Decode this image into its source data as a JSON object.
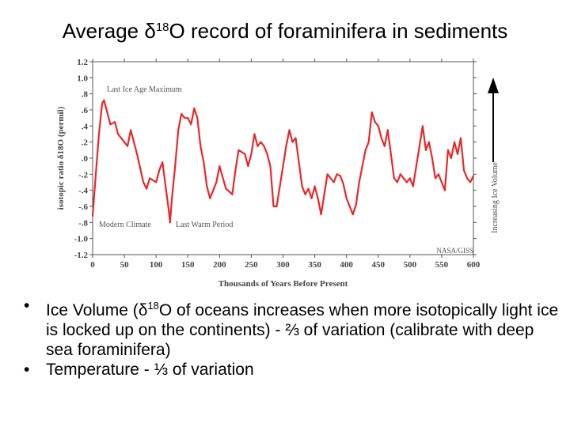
{
  "slide": {
    "title_prefix": "Average δ",
    "title_sup": "18",
    "title_suffix": "O record of foraminifera in sediments"
  },
  "bullets": [
    {
      "before": "Ice Volume (δ",
      "sup": "18",
      "after": "O of oceans increases when more isotopically light ice is locked up on the continents) - ⅔ of variation (calibrate with deep sea foraminifera)"
    },
    {
      "text": "Temperature - ⅓ of variation"
    }
  ],
  "chart_data": {
    "type": "line",
    "title": "",
    "xlabel": "Thousands of Years Before Present",
    "ylabel": "isotopic ratio δ18O (permil)",
    "xlim": [
      0,
      600
    ],
    "ylim": [
      -1.2,
      1.2
    ],
    "x_ticks": [
      0,
      50,
      100,
      150,
      200,
      250,
      300,
      350,
      400,
      450,
      500,
      550,
      600
    ],
    "y_ticks": [
      {
        "v": 1.2,
        "label": "1.2"
      },
      {
        "v": 1.0,
        "label": "1.0"
      },
      {
        "v": 0.8,
        "label": ".8"
      },
      {
        "v": 0.6,
        "label": ".6"
      },
      {
        "v": 0.4,
        "label": ".4"
      },
      {
        "v": 0.2,
        "label": ".2"
      },
      {
        "v": 0.0,
        "label": ".0"
      },
      {
        "v": -0.2,
        "label": "-.2"
      },
      {
        "v": -0.4,
        "label": "-.4"
      },
      {
        "v": -0.6,
        "label": "-.6"
      },
      {
        "v": -0.8,
        "label": "-.8"
      },
      {
        "v": -1.0,
        "label": "-1.0"
      },
      {
        "v": -1.2,
        "label": "-1.2"
      }
    ],
    "annotations": {
      "last_ice_age": "Last Ice Age Maximum",
      "modern_climate": "Modern Climate",
      "last_warm": "Last Warm Period",
      "source": "NASA/GISS",
      "arrow_label": "Increasing Ice Volume"
    },
    "series": [
      {
        "name": "δ18O",
        "color": "#e8282b",
        "x": [
          0,
          5,
          10,
          15,
          18,
          22,
          28,
          35,
          40,
          50,
          55,
          60,
          70,
          80,
          85,
          90,
          100,
          105,
          110,
          115,
          120,
          122,
          125,
          130,
          135,
          140,
          145,
          150,
          155,
          160,
          165,
          170,
          175,
          180,
          185,
          190,
          195,
          200,
          210,
          220,
          225,
          230,
          240,
          245,
          250,
          255,
          260,
          265,
          270,
          275,
          280,
          285,
          290,
          295,
          300,
          305,
          310,
          315,
          320,
          325,
          330,
          335,
          340,
          345,
          350,
          355,
          360,
          365,
          370,
          380,
          385,
          390,
          395,
          400,
          405,
          410,
          415,
          420,
          425,
          430,
          435,
          440,
          445,
          450,
          455,
          460,
          465,
          470,
          475,
          480,
          485,
          490,
          495,
          500,
          505,
          510,
          515,
          520,
          525,
          530,
          535,
          540,
          545,
          550,
          555,
          560,
          565,
          570,
          575,
          580,
          585,
          590,
          595,
          600
        ],
        "values": [
          -0.72,
          -0.2,
          0.3,
          0.68,
          0.72,
          0.6,
          0.42,
          0.45,
          0.3,
          0.2,
          0.15,
          0.35,
          0.05,
          -0.3,
          -0.38,
          -0.25,
          -0.3,
          -0.15,
          -0.05,
          -0.35,
          -0.65,
          -0.8,
          -0.5,
          -0.1,
          0.35,
          0.55,
          0.5,
          0.5,
          0.42,
          0.62,
          0.5,
          0.15,
          -0.05,
          -0.35,
          -0.5,
          -0.4,
          -0.3,
          -0.1,
          -0.38,
          -0.45,
          -0.15,
          0.1,
          0.05,
          -0.1,
          0.05,
          0.3,
          0.15,
          0.2,
          0.15,
          0.05,
          -0.1,
          -0.6,
          -0.6,
          -0.35,
          -0.1,
          0.15,
          0.35,
          0.2,
          0.25,
          -0.05,
          -0.35,
          -0.45,
          -0.38,
          -0.5,
          -0.35,
          -0.5,
          -0.7,
          -0.45,
          -0.2,
          -0.3,
          -0.2,
          -0.22,
          -0.32,
          -0.5,
          -0.6,
          -0.7,
          -0.58,
          -0.3,
          -0.1,
          0.1,
          0.2,
          0.57,
          0.45,
          0.4,
          0.25,
          0.15,
          0.35,
          0.05,
          -0.25,
          -0.3,
          -0.2,
          -0.25,
          -0.3,
          -0.25,
          -0.35,
          -0.1,
          0.15,
          0.4,
          0.1,
          0.2,
          0.0,
          -0.25,
          -0.2,
          -0.3,
          -0.4,
          0.1,
          0.0,
          0.2,
          0.05,
          0.25,
          -0.15,
          -0.25,
          -0.3,
          -0.22
        ]
      }
    ]
  }
}
